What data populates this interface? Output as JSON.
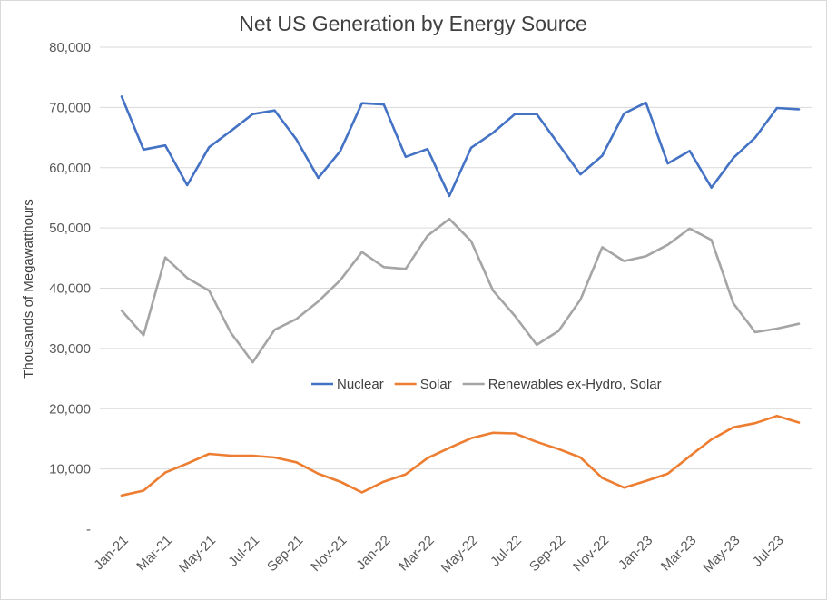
{
  "chart_data": {
    "type": "line",
    "title": "Net US Generation by Energy Source",
    "ylabel": "Thousands of Megawatthours",
    "xlabel": "",
    "ylim": [
      0,
      80000
    ],
    "y_ticks": [
      "-",
      "10,000",
      "20,000",
      "30,000",
      "40,000",
      "50,000",
      "60,000",
      "70,000",
      "80,000"
    ],
    "y_tick_values": [
      0,
      10000,
      20000,
      30000,
      40000,
      50000,
      60000,
      70000,
      80000
    ],
    "grid": true,
    "legend_position": "inside-center",
    "x": [
      "Jan-21",
      "Feb-21",
      "Mar-21",
      "Apr-21",
      "May-21",
      "Jun-21",
      "Jul-21",
      "Aug-21",
      "Sep-21",
      "Oct-21",
      "Nov-21",
      "Dec-21",
      "Jan-22",
      "Feb-22",
      "Mar-22",
      "Apr-22",
      "May-22",
      "Jun-22",
      "Jul-22",
      "Aug-22",
      "Sep-22",
      "Oct-22",
      "Nov-22",
      "Dec-22",
      "Jan-23",
      "Feb-23",
      "Mar-23",
      "Apr-23",
      "May-23",
      "Jun-23",
      "Jul-23",
      "Aug-23"
    ],
    "x_tick_labels": [
      "Jan-21",
      "Mar-21",
      "May-21",
      "Jul-21",
      "Sep-21",
      "Nov-21",
      "Jan-22",
      "Mar-22",
      "May-22",
      "Jul-22",
      "Sep-22",
      "Nov-22",
      "Jan-23",
      "Mar-23",
      "May-23",
      "Jul-23"
    ],
    "series": [
      {
        "name": "Nuclear",
        "color": "#4472c4",
        "values": [
          71800,
          63000,
          63700,
          57100,
          63400,
          66100,
          68900,
          69500,
          64700,
          58300,
          62700,
          70700,
          70500,
          61800,
          63100,
          55300,
          63300,
          65800,
          68900,
          68900,
          63900,
          58900,
          62000,
          69000,
          70800,
          60700,
          62800,
          56700,
          61600,
          65000,
          69900,
          69700
        ]
      },
      {
        "name": "Solar",
        "color": "#ed7d31",
        "values": [
          5600,
          6400,
          9400,
          10900,
          12500,
          12200,
          12200,
          11900,
          11100,
          9200,
          7900,
          6100,
          7900,
          9100,
          11800,
          13500,
          15100,
          16000,
          15900,
          14500,
          13300,
          11900,
          8500,
          6900,
          8000,
          9200,
          12100,
          14900,
          16900,
          17600,
          18800,
          17700
        ]
      },
      {
        "name": "Renewables ex-Hydro, Solar",
        "color": "#a5a5a5",
        "values": [
          36300,
          32200,
          45100,
          41700,
          39600,
          32600,
          27700,
          33100,
          34900,
          37800,
          41300,
          46000,
          43500,
          43200,
          48700,
          51500,
          47800,
          39600,
          35400,
          30600,
          32900,
          38100,
          46800,
          44500,
          45300,
          47200,
          49900,
          48000,
          37500,
          32700,
          33300,
          34100
        ]
      }
    ]
  }
}
